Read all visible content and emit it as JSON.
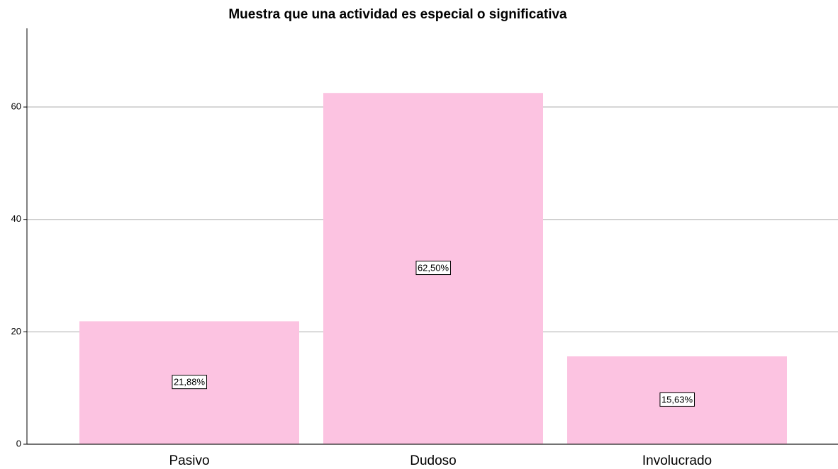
{
  "chart_data": {
    "type": "bar",
    "title": "Muestra que una actividad es especial o significativa",
    "categories": [
      "Pasivo",
      "Dudoso",
      "Involucrado"
    ],
    "values": [
      21.88,
      62.5,
      15.63
    ],
    "value_labels": [
      "21,88%",
      "62,50%",
      "15,63%"
    ],
    "color": "#fcc3e1",
    "ylim": [
      0,
      74
    ],
    "yticks": [
      0,
      20,
      40,
      60
    ],
    "grid": true
  }
}
